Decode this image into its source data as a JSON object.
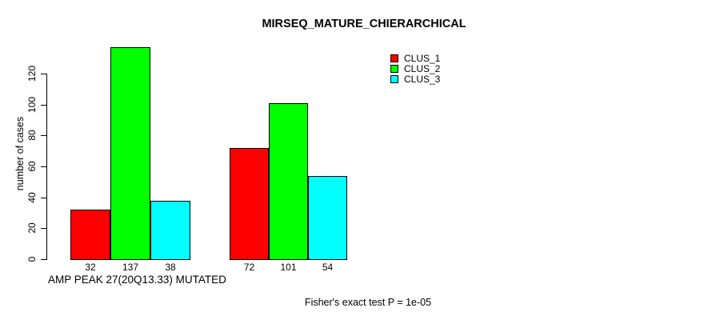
{
  "chart_data": {
    "type": "bar",
    "title": "MIRSEQ_MATURE_CHIERARCHICAL",
    "ylabel": "number of cases",
    "xlabel": "AMP PEAK 27(20Q13.33) MUTATED",
    "annotation": "Fisher's exact test P = 1e-05",
    "series": [
      {
        "name": "CLUS_1",
        "color": "#ff0000",
        "values": [
          32,
          72
        ]
      },
      {
        "name": "CLUS_2",
        "color": "#00ff00",
        "values": [
          137,
          101
        ]
      },
      {
        "name": "CLUS_3",
        "color": "#00ffff",
        "values": [
          38,
          54
        ]
      }
    ],
    "yticks": [
      0,
      20,
      40,
      60,
      80,
      100,
      120
    ],
    "ylim": [
      0,
      120
    ],
    "bar_value_labels": [
      [
        32,
        137,
        38
      ],
      [
        72,
        101,
        54
      ]
    ],
    "legend": {
      "position": "top-right",
      "entries": [
        {
          "label": "CLUS_1",
          "color": "#ff0000"
        },
        {
          "label": "CLUS_2",
          "color": "#00ff00"
        },
        {
          "label": "CLUS_3",
          "color": "#00ffff"
        }
      ]
    },
    "grid": false,
    "background": "#ffffff"
  }
}
